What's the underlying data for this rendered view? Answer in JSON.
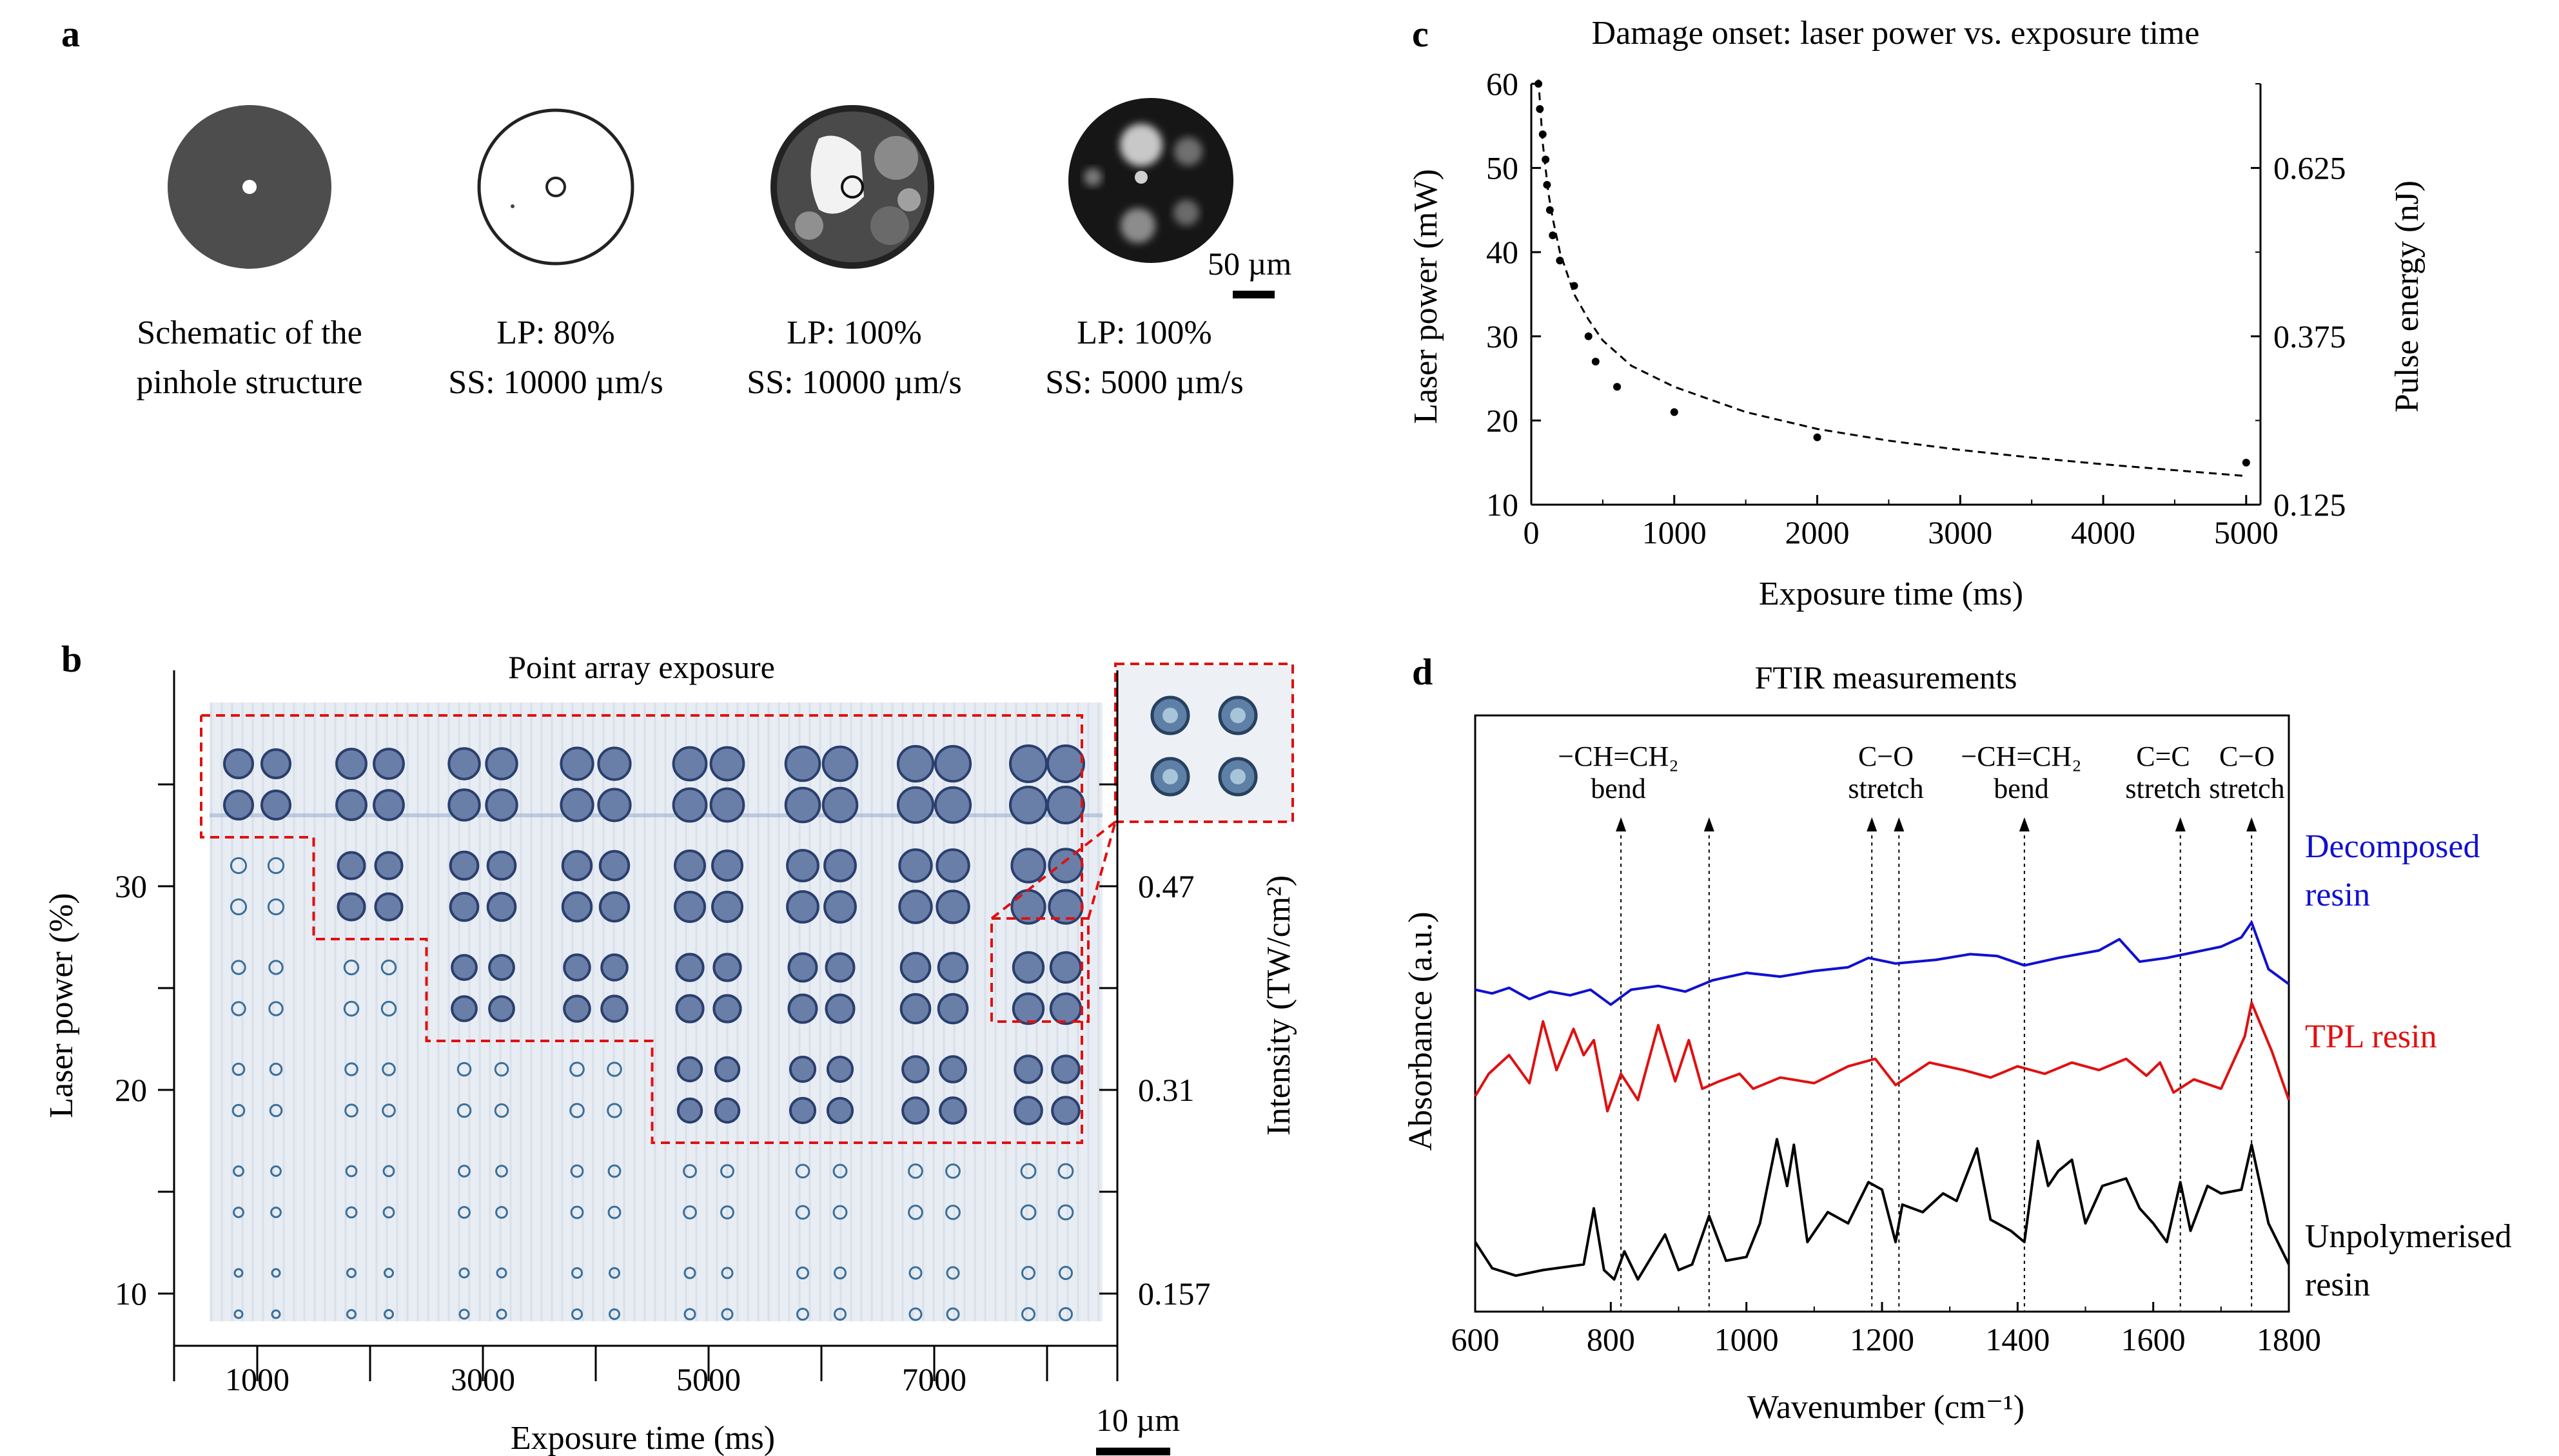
{
  "panels": {
    "a": {
      "letter": "a",
      "captions": [
        [
          "Schematic of the",
          "pinhole structure"
        ],
        [
          "LP: 80%",
          "SS: 10000 µm/s"
        ],
        [
          "LP: 100%",
          "SS: 10000 µm/s"
        ],
        [
          "LP: 100%",
          "SS: 5000 µm/s"
        ]
      ],
      "scale_bar": "50 µm"
    },
    "b": {
      "letter": "b",
      "title": "Point array exposure",
      "scale_bar": "10 µm"
    },
    "c": {
      "letter": "c"
    },
    "d": {
      "letter": "d"
    }
  },
  "chart_data": [
    {
      "id": "b",
      "type": "scatter",
      "title": "Point array exposure",
      "xlabel": "Exposure time (ms)",
      "ylabel": "Laser power (%)",
      "y2label": "Intensity (TW/cm²)",
      "x_ticks": [
        "1000",
        "3000",
        "5000",
        "7000"
      ],
      "y_ticks": [
        "10",
        "20",
        "30"
      ],
      "y2_ticks": [
        "0.157",
        "0.31",
        "0.47"
      ],
      "exposure_columns_ms": [
        1000,
        2000,
        3000,
        4000,
        5000,
        6000,
        7000,
        8000
      ],
      "laser_power_rows_pct": [
        10,
        15,
        20,
        25,
        30,
        35
      ],
      "damaged_region": [
        {
          "column_ms": 1000,
          "from_pct": 35
        },
        {
          "column_ms": 2000,
          "from_pct": 30
        },
        {
          "column_ms": 3000,
          "from_pct": 25
        },
        {
          "column_ms": 4000,
          "from_pct": 25
        },
        {
          "column_ms": 5000,
          "from_pct": 20
        },
        {
          "column_ms": 6000,
          "from_pct": 20
        },
        {
          "column_ms": 7000,
          "from_pct": 20
        },
        {
          "column_ms": 8000,
          "from_pct": 20
        }
      ]
    },
    {
      "id": "c",
      "type": "scatter",
      "title": "Damage onset: laser power vs. exposure time",
      "xlabel": "Exposure time (ms)",
      "ylabel": "Laser power (mW)",
      "y2label": "Pulse energy (nJ)",
      "xlim": [
        0,
        5100
      ],
      "ylim": [
        10,
        60
      ],
      "x_ticks": [
        0,
        1000,
        2000,
        3000,
        4000,
        5000
      ],
      "y_ticks": [
        10,
        20,
        30,
        40,
        50,
        60
      ],
      "y2_ticks": [
        {
          "label": "0.125",
          "at_mw": 10
        },
        {
          "label": "0.375",
          "at_mw": 30
        },
        {
          "label": "0.625",
          "at_mw": 50
        }
      ],
      "points": [
        {
          "x": 50,
          "y": 60
        },
        {
          "x": 60,
          "y": 57
        },
        {
          "x": 80,
          "y": 54
        },
        {
          "x": 100,
          "y": 51
        },
        {
          "x": 110,
          "y": 48
        },
        {
          "x": 130,
          "y": 45
        },
        {
          "x": 150,
          "y": 42
        },
        {
          "x": 200,
          "y": 39
        },
        {
          "x": 300,
          "y": 36
        },
        {
          "x": 400,
          "y": 30
        },
        {
          "x": 450,
          "y": 27
        },
        {
          "x": 600,
          "y": 24
        },
        {
          "x": 1000,
          "y": 21
        },
        {
          "x": 2000,
          "y": 18
        },
        {
          "x": 5000,
          "y": 15
        }
      ],
      "fit": [
        [
          50,
          60.5
        ],
        [
          80,
          53
        ],
        [
          120,
          47
        ],
        [
          150,
          44
        ],
        [
          200,
          40
        ],
        [
          300,
          35
        ],
        [
          400,
          32
        ],
        [
          500,
          29.5
        ],
        [
          700,
          26.5
        ],
        [
          1000,
          24
        ],
        [
          1500,
          21
        ],
        [
          2000,
          19
        ],
        [
          2500,
          17.6
        ],
        [
          3000,
          16.5
        ],
        [
          3500,
          15.6
        ],
        [
          4000,
          14.8
        ],
        [
          4500,
          14.1
        ],
        [
          5000,
          13.4
        ]
      ]
    },
    {
      "id": "d",
      "type": "line",
      "title": "FTIR measurements",
      "xlabel": "Wavenumber (cm⁻¹)",
      "ylabel": "Absorbance (a.u.)",
      "xlim": [
        600,
        1800
      ],
      "x_ticks": [
        600,
        800,
        1000,
        1200,
        1400,
        1600,
        1800
      ],
      "markers": [
        {
          "x": 815,
          "label": [
            "−CH=CH₂",
            "bend"
          ]
        },
        {
          "x": 945,
          "label": []
        },
        {
          "x": 1185,
          "label": [
            "C−O",
            "stretch"
          ]
        },
        {
          "x": 1225,
          "label": []
        },
        {
          "x": 1410,
          "label": [
            "−CH=CH₂",
            "bend"
          ]
        },
        {
          "x": 1640,
          "label": [
            "C=C",
            "stretch"
          ]
        },
        {
          "x": 1745,
          "label": [
            "C−O",
            "stretch"
          ]
        }
      ],
      "series": [
        {
          "name": "Decomposed resin",
          "label_lines": [
            "Decomposed",
            "resin"
          ],
          "color": "#1010d0",
          "values": [
            [
              600,
              1.55
            ],
            [
              625,
              1.53
            ],
            [
              650,
              1.56
            ],
            [
              680,
              1.5
            ],
            [
              710,
              1.54
            ],
            [
              740,
              1.52
            ],
            [
              770,
              1.55
            ],
            [
              800,
              1.47
            ],
            [
              830,
              1.55
            ],
            [
              870,
              1.57
            ],
            [
              910,
              1.54
            ],
            [
              950,
              1.6
            ],
            [
              1000,
              1.64
            ],
            [
              1050,
              1.62
            ],
            [
              1100,
              1.65
            ],
            [
              1150,
              1.67
            ],
            [
              1180,
              1.72
            ],
            [
              1220,
              1.69
            ],
            [
              1280,
              1.71
            ],
            [
              1330,
              1.74
            ],
            [
              1370,
              1.73
            ],
            [
              1410,
              1.68
            ],
            [
              1460,
              1.72
            ],
            [
              1520,
              1.76
            ],
            [
              1550,
              1.82
            ],
            [
              1580,
              1.7
            ],
            [
              1620,
              1.72
            ],
            [
              1660,
              1.75
            ],
            [
              1700,
              1.78
            ],
            [
              1730,
              1.83
            ],
            [
              1745,
              1.91
            ],
            [
              1770,
              1.66
            ],
            [
              1800,
              1.58
            ]
          ]
        },
        {
          "name": "TPL resin",
          "label_lines": [
            "TPL resin"
          ],
          "color": "#e01010",
          "values": [
            [
              600,
              0.98
            ],
            [
              620,
              1.1
            ],
            [
              650,
              1.2
            ],
            [
              680,
              1.05
            ],
            [
              700,
              1.38
            ],
            [
              720,
              1.12
            ],
            [
              745,
              1.34
            ],
            [
              760,
              1.2
            ],
            [
              775,
              1.28
            ],
            [
              795,
              0.9
            ],
            [
              815,
              1.1
            ],
            [
              840,
              0.96
            ],
            [
              870,
              1.36
            ],
            [
              895,
              1.06
            ],
            [
              915,
              1.28
            ],
            [
              935,
              1.02
            ],
            [
              960,
              1.06
            ],
            [
              990,
              1.1
            ],
            [
              1010,
              1.02
            ],
            [
              1050,
              1.08
            ],
            [
              1100,
              1.05
            ],
            [
              1150,
              1.14
            ],
            [
              1190,
              1.18
            ],
            [
              1220,
              1.04
            ],
            [
              1270,
              1.16
            ],
            [
              1320,
              1.12
            ],
            [
              1360,
              1.08
            ],
            [
              1400,
              1.14
            ],
            [
              1440,
              1.1
            ],
            [
              1480,
              1.16
            ],
            [
              1520,
              1.12
            ],
            [
              1560,
              1.18
            ],
            [
              1590,
              1.09
            ],
            [
              1610,
              1.16
            ],
            [
              1630,
              1.0
            ],
            [
              1660,
              1.07
            ],
            [
              1700,
              1.02
            ],
            [
              1735,
              1.3
            ],
            [
              1745,
              1.48
            ],
            [
              1775,
              1.22
            ],
            [
              1800,
              0.96
            ]
          ]
        },
        {
          "name": "Unpolymerised resin",
          "label_lines": [
            "Unpolymerised",
            "resin"
          ],
          "color": "#000000",
          "values": [
            [
              600,
              0.2
            ],
            [
              625,
              0.06
            ],
            [
              660,
              0.02
            ],
            [
              700,
              0.05
            ],
            [
              760,
              0.08
            ],
            [
              775,
              0.38
            ],
            [
              790,
              0.05
            ],
            [
              805,
              0.0
            ],
            [
              820,
              0.15
            ],
            [
              840,
              0.0
            ],
            [
              880,
              0.24
            ],
            [
              900,
              0.05
            ],
            [
              920,
              0.08
            ],
            [
              945,
              0.34
            ],
            [
              970,
              0.1
            ],
            [
              1000,
              0.12
            ],
            [
              1020,
              0.3
            ],
            [
              1045,
              0.75
            ],
            [
              1060,
              0.5
            ],
            [
              1070,
              0.72
            ],
            [
              1090,
              0.2
            ],
            [
              1120,
              0.36
            ],
            [
              1150,
              0.3
            ],
            [
              1180,
              0.52
            ],
            [
              1200,
              0.48
            ],
            [
              1220,
              0.2
            ],
            [
              1230,
              0.4
            ],
            [
              1260,
              0.36
            ],
            [
              1290,
              0.46
            ],
            [
              1310,
              0.42
            ],
            [
              1340,
              0.7
            ],
            [
              1360,
              0.32
            ],
            [
              1390,
              0.26
            ],
            [
              1410,
              0.2
            ],
            [
              1430,
              0.74
            ],
            [
              1445,
              0.5
            ],
            [
              1460,
              0.58
            ],
            [
              1480,
              0.64
            ],
            [
              1500,
              0.3
            ],
            [
              1525,
              0.5
            ],
            [
              1560,
              0.54
            ],
            [
              1580,
              0.38
            ],
            [
              1600,
              0.3
            ],
            [
              1620,
              0.2
            ],
            [
              1640,
              0.52
            ],
            [
              1655,
              0.26
            ],
            [
              1680,
              0.5
            ],
            [
              1700,
              0.46
            ],
            [
              1730,
              0.48
            ],
            [
              1745,
              0.72
            ],
            [
              1770,
              0.3
            ],
            [
              1800,
              0.08
            ]
          ]
        }
      ]
    }
  ]
}
